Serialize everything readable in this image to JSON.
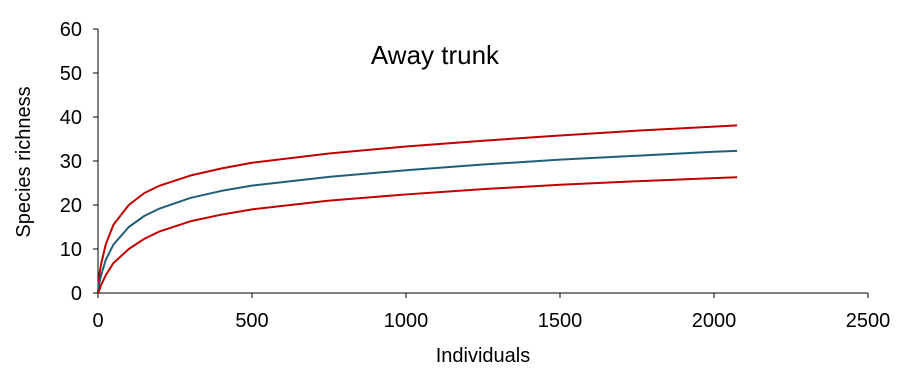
{
  "chart_data": {
    "type": "line",
    "title": "Away trunk",
    "xlabel": "Individuals",
    "ylabel": "Species richness",
    "xlim": [
      0,
      2500
    ],
    "ylim": [
      0,
      60
    ],
    "x_ticks": [
      "0",
      "500",
      "1000",
      "1500",
      "2000",
      "2500"
    ],
    "y_ticks": [
      "0",
      "10",
      "20",
      "30",
      "40",
      "50",
      "60"
    ],
    "grid": false,
    "legend": "none",
    "x": [
      0,
      5,
      10,
      25,
      50,
      100,
      150,
      200,
      300,
      400,
      500,
      750,
      1000,
      1250,
      1500,
      1750,
      2000,
      2075
    ],
    "series": [
      {
        "color": "#c00000",
        "values": [
          0,
          4.5,
          6.5,
          11,
          15.5,
          20,
          22.7,
          24.4,
          26.7,
          28.3,
          29.6,
          31.7,
          33.3,
          34.6,
          35.8,
          36.9,
          37.8,
          38.1
        ]
      },
      {
        "color": "#1f5f7a",
        "values": [
          0,
          2.5,
          4,
          7.5,
          11,
          15,
          17.5,
          19.2,
          21.6,
          23.2,
          24.4,
          26.4,
          27.9,
          29.2,
          30.3,
          31.2,
          32.1,
          32.3
        ]
      },
      {
        "color": "#c00000",
        "values": [
          0,
          0.8,
          1.8,
          4,
          6.8,
          10,
          12.3,
          14,
          16.3,
          17.8,
          19,
          21,
          22.4,
          23.6,
          24.6,
          25.4,
          26.1,
          26.3
        ]
      }
    ]
  }
}
